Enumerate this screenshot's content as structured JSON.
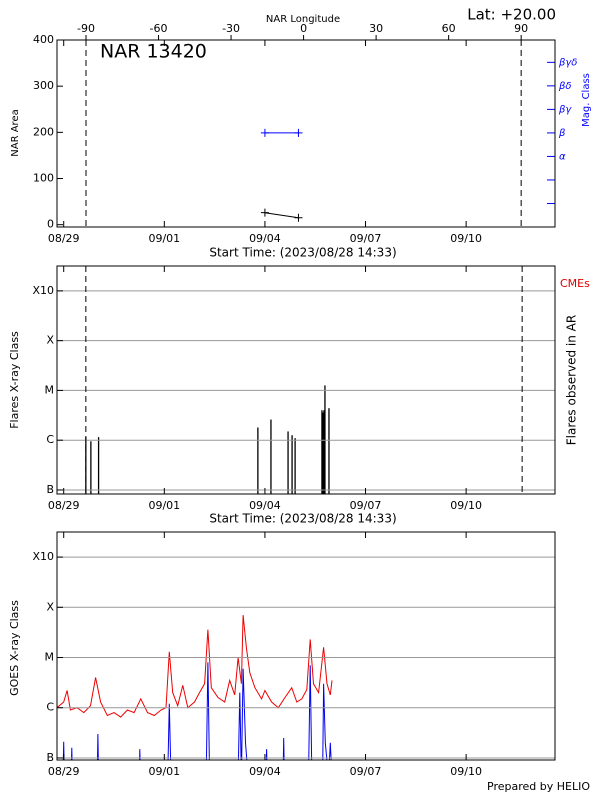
{
  "chart_data": [
    {
      "type": "line",
      "title": "NAR 13420",
      "annotation": "Lat: +20.00",
      "x_label": "Start Time: (2023/08/28 14:33)",
      "x2_label": "NAR Longitude",
      "y_label": "NAR Area",
      "y2_label": "Mag. Class",
      "xlim": [
        -0.2,
        14.65
      ],
      "xticks": [
        {
          "value": 0,
          "label": "08/29"
        },
        {
          "value": 3,
          "label": "09/01"
        },
        {
          "value": 6,
          "label": "09/04"
        },
        {
          "value": 9,
          "label": "09/07"
        },
        {
          "value": 12,
          "label": "09/10"
        }
      ],
      "x2lim": [
        -102,
        104
      ],
      "x2ticks": [
        -90,
        -60,
        -30,
        0,
        30,
        60,
        90
      ],
      "limb_longitudes": [
        -90,
        90
      ],
      "ylim": [
        -5,
        400
      ],
      "yticks": [
        0,
        100,
        200,
        300,
        400
      ],
      "y2lim": [
        0,
        7.95
      ],
      "y2ticks": [
        {
          "value": 1,
          "label": null
        },
        {
          "value": 2,
          "label": null
        },
        {
          "value": 3,
          "label": "α"
        },
        {
          "value": 4,
          "label": "β"
        },
        {
          "value": 5,
          "label": "βγ"
        },
        {
          "value": 6,
          "label": "βδ"
        },
        {
          "value": 7,
          "label": "βγδ"
        }
      ],
      "y2color": "#0000ff",
      "grid": false,
      "log_scale": false,
      "series": [
        {
          "color": "#000000",
          "marker": "+",
          "x": [
            6.0,
            7.0
          ],
          "values": [
            26,
            15
          ]
        },
        {
          "color": "#0000ff",
          "marker": "+",
          "axis": "y2",
          "x": [
            6.0,
            7.0
          ],
          "values": [
            4,
            4
          ]
        }
      ]
    },
    {
      "type": "bar",
      "x_label": "Start Time: (2023/08/28 14:33)",
      "y_label": "Flares X-ray Class",
      "y2_label": "Flares observed in AR",
      "annotation": "CMEs",
      "annotation_color": "#dd0000",
      "xlim": [
        -0.2,
        14.65
      ],
      "xticks": [
        {
          "value": 0,
          "label": "08/29"
        },
        {
          "value": 3,
          "label": "09/01"
        },
        {
          "value": 6,
          "label": "09/04"
        },
        {
          "value": 9,
          "label": "09/07"
        },
        {
          "value": 12,
          "label": "09/10"
        }
      ],
      "limb_times": [
        0.66,
        13.67
      ],
      "log_scale": true,
      "grid": true,
      "ylim": [
        8.3e-08,
        0.00316
      ],
      "yticks": [
        {
          "value": 1e-07,
          "label": "B"
        },
        {
          "value": 1e-06,
          "label": "C"
        },
        {
          "value": 1e-05,
          "label": "M"
        },
        {
          "value": 0.0001,
          "label": "X"
        },
        {
          "value": 0.001,
          "label": "X10"
        }
      ],
      "color": "#000000",
      "x": [
        0.66,
        0.81,
        1.04,
        5.79,
        6.18,
        6.69,
        6.81,
        6.9,
        7.7,
        7.73,
        7.76,
        7.79,
        7.91
      ],
      "values": [
        1.15e-06,
        9.5e-07,
        1.15e-06,
        1.8e-06,
        2.6e-06,
        1.5e-06,
        1.26e-06,
        1.1e-06,
        4e-06,
        3.6e-06,
        4e-06,
        1.26e-05,
        4.4e-06
      ]
    },
    {
      "type": "line",
      "y_label": "GOES X-ray Class",
      "xlim": [
        -0.2,
        14.65
      ],
      "xticks": [
        {
          "value": 0,
          "label": "08/29"
        },
        {
          "value": 3,
          "label": "09/01"
        },
        {
          "value": 6,
          "label": "09/04"
        },
        {
          "value": 9,
          "label": "09/07"
        },
        {
          "value": 12,
          "label": "09/10"
        }
      ],
      "log_scale": true,
      "grid": true,
      "ylim": [
        9.1e-08,
        0.00316
      ],
      "yticks": [
        {
          "value": 1e-07,
          "label": "B"
        },
        {
          "value": 1e-06,
          "label": "C"
        },
        {
          "value": 1e-05,
          "label": "M"
        },
        {
          "value": 0.0001,
          "label": "X"
        },
        {
          "value": 0.001,
          "label": "X10"
        }
      ],
      "series": [
        {
          "color": "#ee0000",
          "x": [
            -0.2,
            0,
            0.1,
            0.2,
            0.4,
            0.6,
            0.8,
            0.95,
            1.1,
            1.3,
            1.5,
            1.7,
            1.9,
            2.1,
            2.3,
            2.5,
            2.7,
            2.9,
            3.05,
            3.15,
            3.25,
            3.4,
            3.55,
            3.7,
            3.9,
            4.05,
            4.2,
            4.3,
            4.4,
            4.6,
            4.8,
            4.95,
            5.1,
            5.2,
            5.3,
            5.35,
            5.45,
            5.55,
            5.7,
            5.9,
            6.0,
            6.2,
            6.4,
            6.6,
            6.8,
            6.95,
            7.1,
            7.25,
            7.35,
            7.45,
            7.6,
            7.75,
            7.85,
            7.95,
            8.0
          ],
          "values": [
            1e-06,
            1.3e-06,
            2.2e-06,
            9e-07,
            1e-06,
            8e-07,
            1.1e-06,
            4e-06,
            1.3e-06,
            7e-07,
            8e-07,
            6.5e-07,
            9e-07,
            8e-07,
            1.5e-06,
            8e-07,
            7e-07,
            9e-07,
            1e-06,
            1.3e-05,
            2e-06,
            1.1e-06,
            2.8e-06,
            1e-06,
            1.3e-06,
            2e-06,
            3e-06,
            3.6e-05,
            2.5e-06,
            1.6e-06,
            1.3e-06,
            3.5e-06,
            1.8e-06,
            1e-05,
            3e-06,
            7e-05,
            1.5e-05,
            5e-06,
            2.5e-06,
            1.5e-06,
            2.2e-06,
            1.3e-06,
            1e-06,
            1.6e-06,
            2.5e-06,
            1.3e-06,
            1.5e-06,
            2.3e-06,
            2.3e-05,
            3e-06,
            2e-06,
            1.6e-05,
            3e-06,
            1.8e-06,
            3.5e-06
          ]
        },
        {
          "color": "#0000ee",
          "x": [
            -0.2,
            -0.02,
            0,
            0.02,
            0.22,
            0.24,
            0.26,
            1.0,
            1.02,
            1.04,
            2.25,
            2.27,
            2.29,
            3.1,
            3.15,
            3.2,
            4.25,
            4.3,
            4.35,
            5.2,
            5.25,
            5.3,
            5.35,
            5.42,
            5.5,
            6.03,
            6.05,
            6.07,
            6.54,
            6.56,
            6.58,
            7.3,
            7.35,
            7.4,
            7.72,
            7.75,
            7.8,
            7.9,
            7.95,
            8.0
          ],
          "values": [
            4e-08,
            4e-08,
            2.1e-07,
            4e-08,
            4e-08,
            1.6e-07,
            4e-08,
            4e-08,
            3e-07,
            4e-08,
            4e-08,
            1.5e-07,
            4e-08,
            4e-08,
            1.2e-06,
            4e-08,
            4e-08,
            8e-06,
            4e-08,
            4e-08,
            2e-06,
            4e-08,
            6e-06,
            2e-07,
            4e-08,
            4e-08,
            1.5e-07,
            4e-08,
            4e-08,
            2.5e-07,
            4e-08,
            4e-08,
            7e-06,
            4e-08,
            4e-08,
            3e-06,
            2e-07,
            4e-08,
            2e-07,
            4e-08
          ]
        }
      ]
    }
  ],
  "footer": "Prepared by HELIO"
}
